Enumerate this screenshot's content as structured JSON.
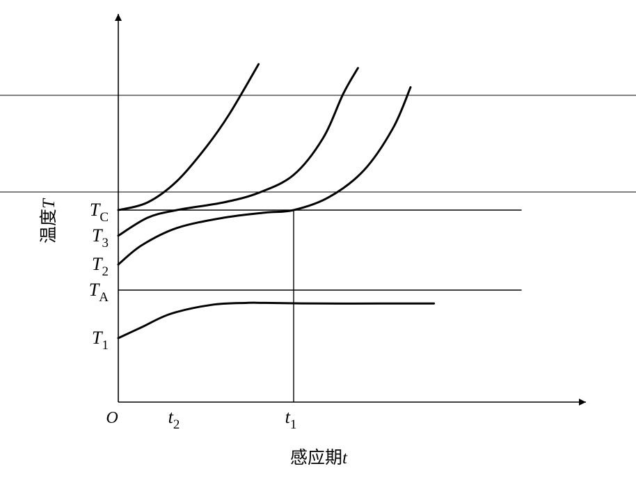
{
  "chart_data": {
    "type": "line",
    "title": "",
    "xlabel": {
      "text": "感应期",
      "var": "t"
    },
    "ylabel": {
      "text": "温度",
      "var": "T"
    },
    "origin_label": "O",
    "y_ticks": [
      {
        "key": "T1",
        "main": "T",
        "sub": "1",
        "value": 1.0
      },
      {
        "key": "TA",
        "main": "T",
        "sub": "A",
        "value": 1.75
      },
      {
        "key": "T2",
        "main": "T",
        "sub": "2",
        "value": 2.15
      },
      {
        "key": "T3",
        "main": "T",
        "sub": "3",
        "value": 2.6
      },
      {
        "key": "TC",
        "main": "T",
        "sub": "C",
        "value": 3.0
      }
    ],
    "x_ticks": [
      {
        "key": "t2",
        "main": "t",
        "sub": "2",
        "value": 1.0
      },
      {
        "key": "t1",
        "main": "t",
        "sub": "1",
        "value": 3.0
      }
    ],
    "reference_lines": [
      {
        "type": "horizontal",
        "ref": "TC",
        "x_end": 6.9
      },
      {
        "type": "horizontal",
        "ref": "TA",
        "x_end": 6.9
      },
      {
        "type": "vertical",
        "ref": "t1"
      }
    ],
    "series": [
      {
        "start": "T1",
        "values": [
          [
            0,
            1.0
          ],
          [
            0.4,
            1.17
          ],
          [
            0.9,
            1.38
          ],
          [
            1.6,
            1.52
          ],
          [
            2.2,
            1.55
          ],
          [
            2.5,
            1.55
          ],
          [
            3.5,
            1.54
          ],
          [
            4.5,
            1.54
          ],
          [
            5.4,
            1.54
          ]
        ]
      },
      {
        "start": "T2",
        "values": [
          [
            0,
            2.15
          ],
          [
            0.4,
            2.45
          ],
          [
            1.0,
            2.72
          ],
          [
            1.8,
            2.88
          ],
          [
            2.5,
            2.96
          ],
          [
            3.0,
            3.0
          ],
          [
            3.6,
            3.2
          ],
          [
            4.2,
            3.62
          ],
          [
            4.7,
            4.28
          ],
          [
            5.0,
            4.92
          ]
        ]
      },
      {
        "start": "T3",
        "values": [
          [
            0,
            2.6
          ],
          [
            0.5,
            2.88
          ],
          [
            1.0,
            3.0
          ],
          [
            1.8,
            3.12
          ],
          [
            2.4,
            3.27
          ],
          [
            3.0,
            3.55
          ],
          [
            3.5,
            4.12
          ],
          [
            3.85,
            4.82
          ],
          [
            4.1,
            5.22
          ]
        ]
      },
      {
        "start": "TC",
        "values": [
          [
            0,
            3.0
          ],
          [
            0.5,
            3.12
          ],
          [
            1.0,
            3.45
          ],
          [
            1.5,
            3.98
          ],
          [
            1.9,
            4.5
          ],
          [
            2.4,
            5.28
          ]
        ]
      }
    ],
    "xlim": [
      0,
      8.0
    ],
    "ylim": [
      0,
      6.0
    ],
    "grid": false,
    "legend": "none"
  }
}
